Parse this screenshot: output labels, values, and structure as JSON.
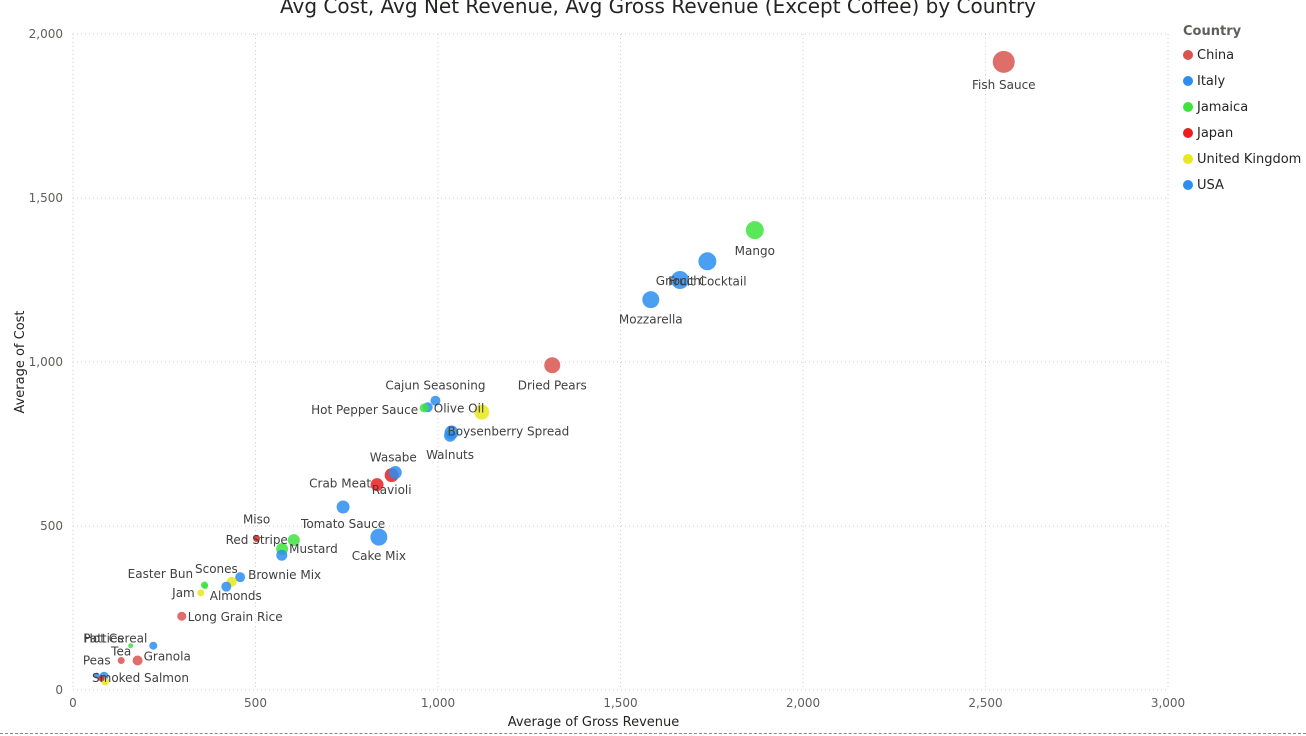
{
  "chart_data": {
    "type": "scatter",
    "title": "Avg Cost, Avg Net Revenue, Avg Gross Revenue (Except Coffee) by Country",
    "xlabel": "Average of Gross Revenue",
    "ylabel": "Average of Cost",
    "xlim": [
      0,
      3000
    ],
    "ylim": [
      0,
      2000
    ],
    "xticks": [
      0,
      500,
      1000,
      1500,
      2000,
      2500,
      3000
    ],
    "yticks": [
      0,
      500,
      1000,
      1500,
      2000
    ],
    "xtick_labels": [
      "0",
      "500",
      "1,000",
      "1,500",
      "2,000",
      "2,500",
      "3,000"
    ],
    "ytick_labels": [
      "0",
      "500",
      "1,000",
      "1,500",
      "2,000"
    ],
    "grid": true,
    "size_encoding": "Avg Net Revenue",
    "legend": {
      "title": "Country",
      "position": "right",
      "entries": [
        {
          "name": "China",
          "color": "#d9534f"
        },
        {
          "name": "Italy",
          "color": "#2b8ef0"
        },
        {
          "name": "Jamaica",
          "color": "#3de33d"
        },
        {
          "name": "Japan",
          "color": "#e81f1f"
        },
        {
          "name": "United Kingdom",
          "color": "#e8e81a"
        },
        {
          "name": "USA",
          "color": "#2b8ef0"
        }
      ]
    },
    "points": [
      {
        "label": "Fish Sauce",
        "country": "China",
        "x": 2550,
        "y": 1915,
        "size": 11
      },
      {
        "label": "Mango",
        "country": "Jamaica",
        "x": 1868,
        "y": 1402,
        "size": 9
      },
      {
        "label": "Fruit Cocktail",
        "country": "Italy",
        "x": 1738,
        "y": 1307,
        "size": 9
      },
      {
        "label": "Gnocchi",
        "country": "Italy",
        "x": 1663,
        "y": 1250,
        "size": 9
      },
      {
        "label": "Mozzarella",
        "country": "Italy",
        "x": 1583,
        "y": 1190,
        "size": 8.5
      },
      {
        "label": "Dried Pears",
        "country": "China",
        "x": 1313,
        "y": 990,
        "size": 8
      },
      {
        "label": "Cajun Seasoning",
        "country": "USA",
        "x": 993,
        "y": 882,
        "size": 5
      },
      {
        "label": "Olive Oil",
        "country": "Italy",
        "x": 972,
        "y": 862,
        "size": 5
      },
      {
        "label": "Hot Pepper Sauce",
        "country": "Jamaica",
        "x": 962,
        "y": 860,
        "size": 4.5
      },
      {
        "label": "",
        "country": "United Kingdom",
        "x": 1120,
        "y": 847,
        "size": 7.5
      },
      {
        "label": "Boysenberry Spread",
        "country": "USA",
        "x": 1037,
        "y": 785,
        "size": 7
      },
      {
        "label": "Walnuts",
        "country": "USA",
        "x": 1033,
        "y": 775,
        "size": 6
      },
      {
        "label": "Wasabe",
        "country": "USA",
        "x": 883,
        "y": 663,
        "size": 6.5
      },
      {
        "label": "Ravioli",
        "country": "Japan",
        "x": 873,
        "y": 655,
        "size": 7
      },
      {
        "label": "Crab Meat",
        "country": "Japan",
        "x": 833,
        "y": 626,
        "size": 6.5
      },
      {
        "label": "Tomato Sauce",
        "country": "USA",
        "x": 740,
        "y": 558,
        "size": 6.5
      },
      {
        "label": "Cake Mix",
        "country": "USA",
        "x": 838,
        "y": 466,
        "size": 8.5
      },
      {
        "label": "Miso",
        "country": "Japan",
        "x": 503,
        "y": 462,
        "size": 3.5
      },
      {
        "label": "Red Stripe",
        "country": "Jamaica",
        "x": 605,
        "y": 457,
        "size": 6
      },
      {
        "label": "Mustard",
        "country": "Jamaica",
        "x": 573,
        "y": 430,
        "size": 6
      },
      {
        "label": "",
        "country": "USA",
        "x": 572,
        "y": 411,
        "size": 5.5
      },
      {
        "label": "Brownie Mix",
        "country": "USA",
        "x": 458,
        "y": 344,
        "size": 5
      },
      {
        "label": "Almonds",
        "country": "United Kingdom",
        "x": 435,
        "y": 330,
        "size": 5
      },
      {
        "label": "",
        "country": "USA",
        "x": 420,
        "y": 315,
        "size": 5
      },
      {
        "label": "Scones",
        "country": "Jamaica",
        "x": 360,
        "y": 320,
        "size": 3.5
      },
      {
        "label": "Easter Bun",
        "country": "Jamaica",
        "x": 362,
        "y": 317,
        "size": 3
      },
      {
        "label": "Jam",
        "country": "United Kingdom",
        "x": 350,
        "y": 296,
        "size": 3.5
      },
      {
        "label": "Long Grain Rice",
        "country": "China",
        "x": 298,
        "y": 225,
        "size": 4.5
      },
      {
        "label": "Patties",
        "country": "Jamaica",
        "x": 158,
        "y": 135,
        "size": 2.5
      },
      {
        "label": "Hot Cereal",
        "country": "USA",
        "x": 220,
        "y": 135,
        "size": 4
      },
      {
        "label": "Granola",
        "country": "China",
        "x": 177,
        "y": 90,
        "size": 5
      },
      {
        "label": "Tea",
        "country": "China",
        "x": 132,
        "y": 90,
        "size": 3.5
      },
      {
        "label": "Peas",
        "country": "USA",
        "x": 65,
        "y": 44,
        "size": 3
      },
      {
        "label": "Smoked Salmon",
        "country": "USA",
        "x": 85,
        "y": 42,
        "size": 4.5
      },
      {
        "label": "",
        "country": "United Kingdom",
        "x": 88,
        "y": 26,
        "size": 4
      },
      {
        "label": "",
        "country": "Japan",
        "x": 78,
        "y": 35,
        "size": 3
      }
    ]
  }
}
